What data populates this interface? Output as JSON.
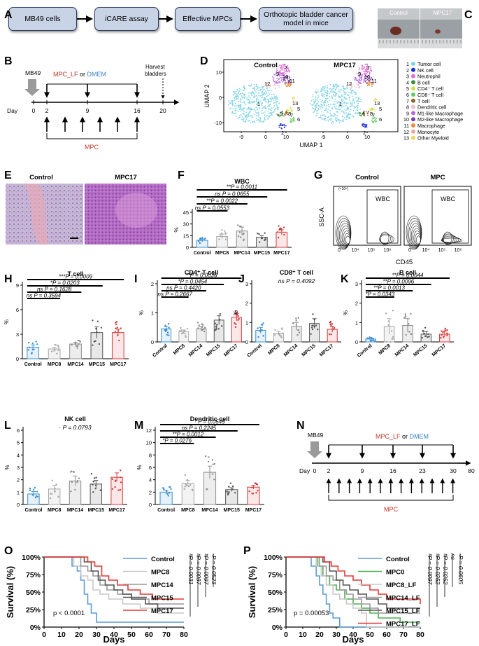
{
  "panel_letters": [
    "A",
    "B",
    "C",
    "D",
    "E",
    "F",
    "G",
    "H",
    "I",
    "J",
    "K",
    "L",
    "M",
    "N",
    "O",
    "P"
  ],
  "panelA": {
    "steps": [
      "MB49 cells",
      "iCARE assay",
      "Effective MPCs",
      "Orthotopic bladder cancer model in mice"
    ]
  },
  "panelB": {
    "cell_line": "MB49",
    "treat_label_a": "MPC_LF",
    "treat_or": " or ",
    "treat_label_b": "DMEM",
    "harvest": "Harvest bladders",
    "day_label": "Day",
    "days": [
      "0",
      "2",
      "9",
      "16",
      "20"
    ],
    "mpc_label": "MPC"
  },
  "panelC": {
    "labels": [
      "Control",
      "MPC17"
    ]
  },
  "panelD": {
    "titles": [
      "Control",
      "MPC17"
    ],
    "xlabel": "UMAP 1",
    "ylabel": "UMAP 2",
    "xticks": [
      "-9",
      "0",
      "10",
      "-9",
      "0",
      "10"
    ],
    "yticks": [
      "10",
      "0",
      "-10"
    ],
    "legend": [
      {
        "n": "1",
        "label": "Tumor cell",
        "color": "#7fd3e8"
      },
      {
        "n": "2",
        "label": "NK cell",
        "color": "#1a2ed8"
      },
      {
        "n": "3",
        "label": "Neutrophil",
        "color": "#e36fd6"
      },
      {
        "n": "4",
        "label": "B cell",
        "color": "#3c8c3c"
      },
      {
        "n": "5",
        "label": "CD4⁺ T cell",
        "color": "#d2dc4c"
      },
      {
        "n": "6",
        "label": "CD8⁺ T cell",
        "color": "#66cc66"
      },
      {
        "n": "7",
        "label": "T cell",
        "color": "#8a6a2a"
      },
      {
        "n": "8",
        "label": "Dendritic cell",
        "color": "#e9c4d0"
      },
      {
        "n": "9",
        "label": "M1-like Macrophage",
        "color": "#b566dd"
      },
      {
        "n": "10",
        "label": "M2-like Macrophage",
        "color": "#7b3fa8"
      },
      {
        "n": "11",
        "label": "Macrophage",
        "color": "#e88a3a"
      },
      {
        "n": "12",
        "label": "Monocyte",
        "color": "#e8a8a0"
      },
      {
        "n": "13",
        "label": "Other Myeloid",
        "color": "#f2d45a"
      }
    ]
  },
  "panelE": {
    "labels": [
      "Control",
      "MPC17"
    ]
  },
  "panelG": {
    "titles": [
      "Control",
      "MPC"
    ],
    "gate": "WBC",
    "ylabel": "SSC-A",
    "xlabel": "CD45",
    "xticks": [
      "0",
      "10⁴",
      "10⁵",
      "10⁶"
    ],
    "yexp": "(×10⁶)"
  },
  "chart_data": [
    {
      "id": "F",
      "type": "bar",
      "title": "WBC",
      "ylabel": "%",
      "categories": [
        "Control",
        "MPC8",
        "MPC14",
        "MPC15",
        "MPC17"
      ],
      "values": [
        9,
        14,
        21,
        13,
        19.5
      ],
      "errors": [
        2,
        3,
        5,
        2,
        3
      ],
      "ylim": [
        0,
        45
      ],
      "yticks": [
        "0",
        "15",
        "30",
        "45"
      ],
      "comparisons": [
        {
          "label": "**P = 0.0011",
          "to": 4
        },
        {
          "label": "ns P = 0.0655",
          "to": 3
        },
        {
          "label": "**P = 0.0022",
          "to": 2
        },
        {
          "label": "ns P = 0.0553",
          "to": 1
        }
      ]
    },
    {
      "id": "H",
      "type": "bar",
      "title": "T cell",
      "ylabel": "%",
      "categories": [
        "Control",
        "MPC8",
        "MPC14",
        "MPC15",
        "MPC17"
      ],
      "values": [
        1.4,
        1.2,
        1.8,
        3.2,
        3.2
      ],
      "errors": [
        0.3,
        0.2,
        0.2,
        0.7,
        0.4
      ],
      "ylim": [
        0,
        9
      ],
      "yticks": [
        "0",
        "3",
        "6",
        "9"
      ],
      "comparisons": [
        {
          "label": "***P = 0.0009",
          "to": 4
        },
        {
          "label": "*P = 0.0203",
          "to": 3
        },
        {
          "label": "ns P = 0.1628",
          "to": 2
        },
        {
          "label": "ns P = 0.3594",
          "to": 1
        }
      ]
    },
    {
      "id": "I",
      "type": "bar",
      "title": "CD4⁺ T cell",
      "ylabel": "%",
      "categories": [
        "Control",
        "MPC8",
        "MPC14",
        "MPC15",
        "MPC17"
      ],
      "values": [
        0.45,
        0.35,
        0.45,
        0.75,
        0.85
      ],
      "errors": [
        0.08,
        0.06,
        0.08,
        0.15,
        0.12
      ],
      "ylim": [
        0,
        2
      ],
      "yticks": [
        "0",
        "1",
        "2"
      ],
      "comparisons": [
        {
          "label": "**P = 0.0036",
          "to": 4
        },
        {
          "label": "*P = 0.0454",
          "to": 3
        },
        {
          "label": "ns P = 0.4420",
          "to": 2
        },
        {
          "label": "ns P = 0.2667",
          "to": 1
        }
      ]
    },
    {
      "id": "J",
      "type": "bar",
      "title": "CD8⁺ T cell",
      "ylabel": "%",
      "categories": [
        "Control",
        "MPC8",
        "MPC14",
        "MPC15",
        "MPC17"
      ],
      "values": [
        0.6,
        0.45,
        0.8,
        0.95,
        0.65
      ],
      "errors": [
        0.15,
        0.1,
        0.2,
        0.25,
        0.15
      ],
      "ylim": [
        0,
        3
      ],
      "yticks": [
        "0",
        "1",
        "2",
        "3"
      ],
      "comparisons": [
        {
          "label": "ns P = 0.4092",
          "to": -1
        }
      ]
    },
    {
      "id": "K",
      "type": "bar",
      "title": "B cell",
      "ylabel": "%",
      "categories": [
        "Control",
        "MPC8",
        "MPC14",
        "MPC15",
        "MPC17"
      ],
      "values": [
        0.15,
        0.8,
        0.85,
        0.4,
        0.4
      ],
      "errors": [
        0.05,
        0.4,
        0.35,
        0.15,
        0.15
      ],
      "ylim": [
        0,
        3
      ],
      "yticks": [
        "0",
        "1",
        "2",
        "3"
      ],
      "comparisons": [
        {
          "label": "**P = 0.0044",
          "to": 4
        },
        {
          "label": "**P = 0.0096",
          "to": 3
        },
        {
          "label": "**P = 0.0013",
          "to": 2
        },
        {
          "label": "*P = 0.0343",
          "to": 1
        }
      ]
    },
    {
      "id": "L",
      "type": "bar",
      "title": "NK cell",
      "ylabel": "%",
      "categories": [
        "Control",
        "MPC8",
        "MPC14",
        "MPC15",
        "MPC17"
      ],
      "values": [
        0.85,
        1.25,
        1.9,
        1.65,
        2.2
      ],
      "errors": [
        0.2,
        0.3,
        0.4,
        0.3,
        0.35
      ],
      "ylim": [
        0,
        6
      ],
      "yticks": [
        "0",
        "1",
        "2",
        "3",
        "4",
        "5",
        "6"
      ],
      "comparisons": [
        {
          "label": "· P = 0.0793",
          "to": -1
        }
      ]
    },
    {
      "id": "M",
      "type": "bar",
      "title": "Dendritic cell",
      "ylabel": "%",
      "categories": [
        "Control",
        "MPC8",
        "MPC14",
        "MPC15",
        "MPC17"
      ],
      "values": [
        2.0,
        3.4,
        5.2,
        2.4,
        2.8
      ],
      "errors": [
        0.3,
        0.5,
        1.0,
        0.3,
        0.3
      ],
      "ylim": [
        0,
        12
      ],
      "yticks": [
        "0",
        "2",
        "4",
        "6",
        "8",
        "10",
        "12"
      ],
      "comparisons": [
        {
          "label": "· P = 0.0545",
          "to": 4
        },
        {
          "label": "ns P = 0.2245",
          "to": 3
        },
        {
          "label": "**P = 0.0012",
          "to": 2
        },
        {
          "label": "*P = 0.0276",
          "to": 1
        }
      ]
    },
    {
      "id": "O",
      "type": "line",
      "subtype": "kaplan-meier",
      "ylabel": "Survival (%)",
      "xlabel": "Days",
      "xlim": [
        0,
        80
      ],
      "ylim": [
        0,
        100
      ],
      "xticks": [
        "0",
        "10",
        "20",
        "30",
        "40",
        "50",
        "60",
        "70",
        "80"
      ],
      "yticks": [
        "0%",
        "25%",
        "50%",
        "75%",
        "100%"
      ],
      "pvalue": "p < 0.0001",
      "series": [
        {
          "name": "Control",
          "color": "#5b9bd5",
          "points": [
            [
              0,
              100
            ],
            [
              13,
              100
            ],
            [
              16,
              87
            ],
            [
              19,
              80
            ],
            [
              21,
              67
            ],
            [
              23,
              47
            ],
            [
              25,
              33
            ],
            [
              27,
              20
            ],
            [
              30,
              7
            ],
            [
              80,
              7
            ]
          ]
        },
        {
          "name": "MPC8",
          "color": "#c8c8c8",
          "points": [
            [
              0,
              100
            ],
            [
              14,
              100
            ],
            [
              17,
              87
            ],
            [
              21,
              73
            ],
            [
              25,
              67
            ],
            [
              28,
              53
            ],
            [
              32,
              47
            ],
            [
              37,
              40
            ],
            [
              45,
              33
            ],
            [
              55,
              27
            ],
            [
              65,
              20
            ],
            [
              80,
              20
            ]
          ]
        },
        {
          "name": "MPC14",
          "color": "#9a9a9a",
          "points": [
            [
              0,
              100
            ],
            [
              18,
              100
            ],
            [
              21,
              87
            ],
            [
              25,
              80
            ],
            [
              28,
              73
            ],
            [
              32,
              60
            ],
            [
              36,
              53
            ],
            [
              42,
              47
            ],
            [
              50,
              40
            ],
            [
              60,
              33
            ],
            [
              80,
              33
            ]
          ]
        },
        {
          "name": "MPC15",
          "color": "#555555",
          "points": [
            [
              0,
              100
            ],
            [
              19,
              100
            ],
            [
              23,
              93
            ],
            [
              27,
              80
            ],
            [
              31,
              67
            ],
            [
              35,
              60
            ],
            [
              40,
              53
            ],
            [
              45,
              47
            ],
            [
              50,
              40
            ],
            [
              58,
              33
            ],
            [
              65,
              27
            ],
            [
              80,
              27
            ]
          ]
        },
        {
          "name": "MPC17",
          "color": "#e53935",
          "points": [
            [
              0,
              100
            ],
            [
              21,
              100
            ],
            [
              25,
              93
            ],
            [
              29,
              87
            ],
            [
              33,
              73
            ],
            [
              37,
              67
            ],
            [
              42,
              60
            ],
            [
              48,
              53
            ],
            [
              55,
              47
            ],
            [
              62,
              40
            ],
            [
              80,
              40
            ]
          ]
        }
      ],
      "pvals": [
        "*P = 0.0031",
        "*P = 0.0097",
        "*P = 0.0097",
        "·P = 0.0523"
      ]
    },
    {
      "id": "P",
      "type": "line",
      "subtype": "kaplan-meier",
      "ylabel": "Survival (%)",
      "xlabel": "Days",
      "xlim": [
        0,
        80
      ],
      "ylim": [
        0,
        100
      ],
      "xticks": [
        "0",
        "10",
        "20",
        "30",
        "40",
        "50",
        "60",
        "70",
        "80"
      ],
      "yticks": [
        "0%",
        "25%",
        "50%",
        "75%",
        "100%"
      ],
      "pvalue": "p = 0.00053",
      "series": [
        {
          "name": "Control",
          "color": "#5b9bd5",
          "points": [
            [
              0,
              100
            ],
            [
              13,
              100
            ],
            [
              15,
              87
            ],
            [
              18,
              73
            ],
            [
              20,
              60
            ],
            [
              22,
              47
            ],
            [
              24,
              33
            ],
            [
              26,
              20
            ],
            [
              28,
              13
            ],
            [
              32,
              0
            ],
            [
              80,
              0
            ]
          ]
        },
        {
          "name": "MPC0",
          "color": "#4caf50",
          "points": [
            [
              0,
              100
            ],
            [
              16,
              100
            ],
            [
              19,
              87
            ],
            [
              22,
              73
            ],
            [
              26,
              60
            ],
            [
              30,
              53
            ],
            [
              35,
              40
            ],
            [
              40,
              33
            ],
            [
              45,
              27
            ],
            [
              50,
              20
            ],
            [
              55,
              13
            ],
            [
              68,
              13
            ],
            [
              68,
              7
            ],
            [
              80,
              7
            ]
          ]
        },
        {
          "name": "MPC8_LF",
          "color": "#c8c8c8",
          "points": [
            [
              0,
              100
            ],
            [
              15,
              100
            ],
            [
              18,
              87
            ],
            [
              21,
              73
            ],
            [
              24,
              60
            ],
            [
              28,
              47
            ],
            [
              32,
              40
            ],
            [
              36,
              33
            ],
            [
              40,
              27
            ],
            [
              45,
              20
            ],
            [
              48,
              0
            ],
            [
              80,
              0
            ]
          ]
        },
        {
          "name": "MPC14_LF",
          "color": "#9a9a9a",
          "points": [
            [
              0,
              100
            ],
            [
              17,
              100
            ],
            [
              20,
              87
            ],
            [
              24,
              73
            ],
            [
              28,
              67
            ],
            [
              32,
              53
            ],
            [
              36,
              47
            ],
            [
              40,
              40
            ],
            [
              45,
              33
            ],
            [
              50,
              27
            ],
            [
              55,
              20
            ],
            [
              80,
              20
            ]
          ]
        },
        {
          "name": "MPC15_LF",
          "color": "#555555",
          "points": [
            [
              0,
              100
            ],
            [
              18,
              100
            ],
            [
              22,
              93
            ],
            [
              26,
              80
            ],
            [
              30,
              67
            ],
            [
              34,
              60
            ],
            [
              38,
              53
            ],
            [
              43,
              47
            ],
            [
              48,
              40
            ],
            [
              55,
              33
            ],
            [
              60,
              27
            ],
            [
              80,
              27
            ]
          ]
        },
        {
          "name": "MPC17_LF",
          "color": "#e53935",
          "points": [
            [
              0,
              100
            ],
            [
              20,
              100
            ],
            [
              23,
              93
            ],
            [
              27,
              87
            ],
            [
              31,
              80
            ],
            [
              35,
              73
            ],
            [
              40,
              67
            ],
            [
              45,
              60
            ],
            [
              50,
              53
            ],
            [
              55,
              47
            ],
            [
              60,
              40
            ],
            [
              80,
              33
            ]
          ]
        }
      ],
      "pvals": [
        "*P = 0.0097",
        "*P = 0.0252",
        "*P = 0.0252",
        "ns",
        "·P = 0.0605"
      ]
    }
  ],
  "panelN": {
    "cell_line": "MB49",
    "treat_label_a": "MPC_LF",
    "treat_or": " or ",
    "treat_label_b": "DMEM",
    "day_label": "Day",
    "days": [
      "0",
      "2",
      "9",
      "16",
      "23",
      "30",
      "80"
    ],
    "dots": "····",
    "mpc_label": "MPC"
  }
}
